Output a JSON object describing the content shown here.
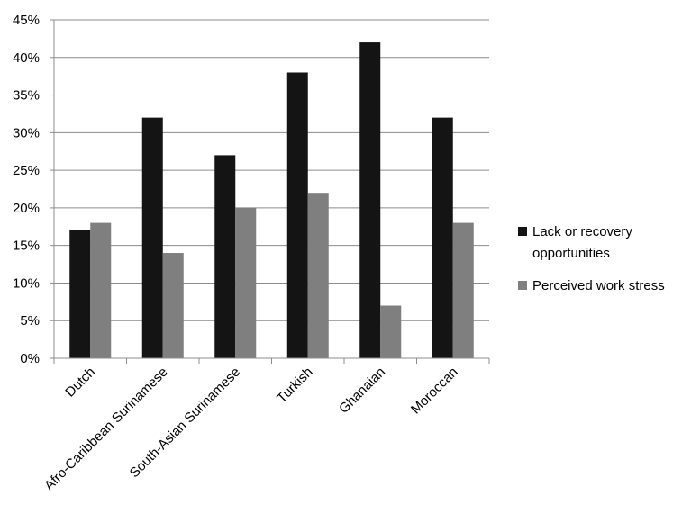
{
  "chart_data": {
    "type": "bar",
    "categories": [
      "Dutch",
      "Afro-Caribbean Surinamese",
      "South-Asian Surinamese",
      "Turkish",
      "Ghanaian",
      "Moroccan"
    ],
    "series": [
      {
        "name": "Lack or recovery opportunities",
        "color": "#141414",
        "values": [
          17,
          32,
          27,
          38,
          42,
          32
        ]
      },
      {
        "name": "Perceived work stress",
        "color": "#7f7f7f",
        "values": [
          18,
          14,
          20,
          22,
          7,
          18
        ]
      }
    ],
    "y_ticks": [
      "0%",
      "5%",
      "10%",
      "15%",
      "20%",
      "25%",
      "30%",
      "35%",
      "40%",
      "45%"
    ],
    "ylim": [
      0,
      45
    ],
    "y_step": 5,
    "grid": true,
    "legend_position": "right"
  }
}
